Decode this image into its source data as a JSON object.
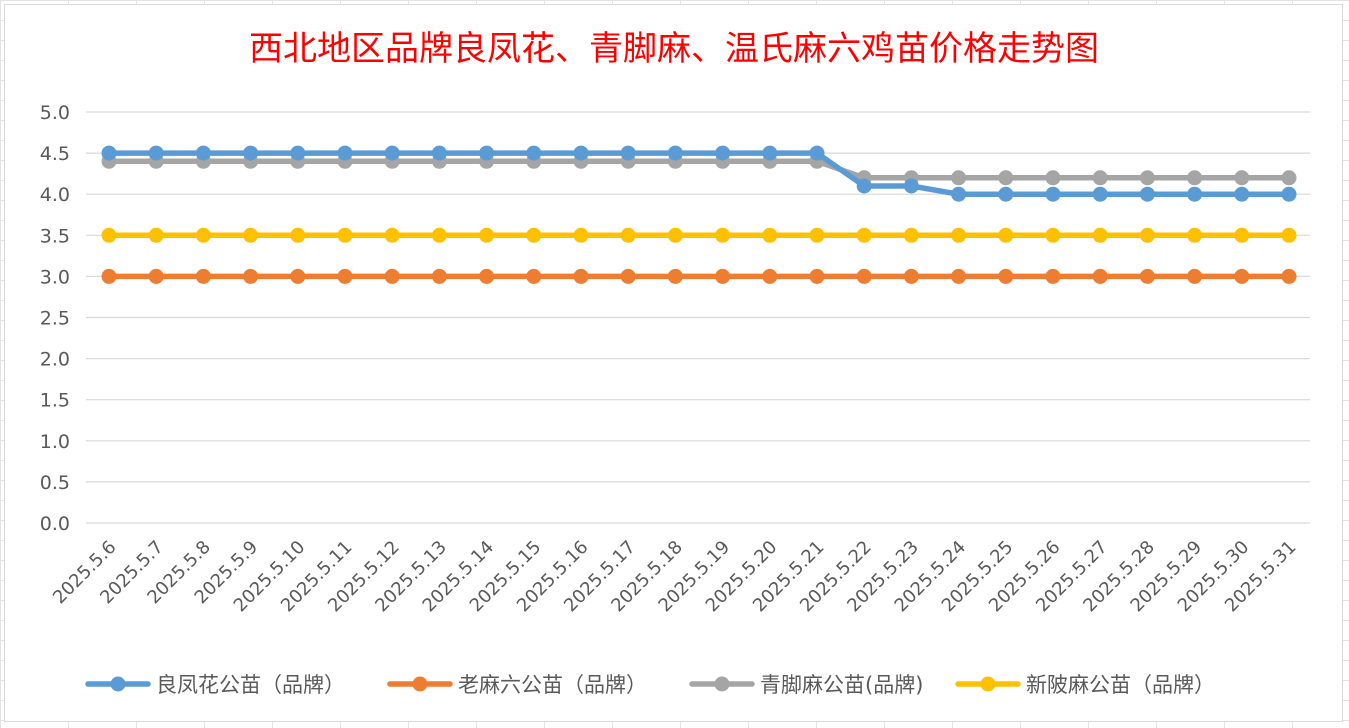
{
  "chart_data": {
    "type": "line",
    "title": "西北地区品牌良凤花、青脚麻、温氏麻六鸡苗价格走势图",
    "xlabel": "",
    "ylabel": "",
    "ylim": [
      0,
      5.0
    ],
    "ytick_step": 0.5,
    "yticks": [
      "0.0",
      "0.5",
      "1.0",
      "1.5",
      "2.0",
      "2.5",
      "3.0",
      "3.5",
      "4.0",
      "4.5",
      "5.0"
    ],
    "grid": true,
    "legend_position": "bottom",
    "categories": [
      "2025.5.6",
      "2025.5.7",
      "2025.5.8",
      "2025.5.9",
      "2025.5.10",
      "2025.5.11",
      "2025.5.12",
      "2025.5.13",
      "2025.5.14",
      "2025.5.15",
      "2025.5.16",
      "2025.5.17",
      "2025.5.18",
      "2025.5.19",
      "2025.5.20",
      "2025.5.21",
      "2025.5.22",
      "2025.5.23",
      "2025.5.24",
      "2025.5.25",
      "2025.5.26",
      "2025.5.27",
      "2025.5.28",
      "2025.5.29",
      "2025.5.30",
      "2025.5.31"
    ],
    "series": [
      {
        "name": "良凤花公苗（品牌）",
        "color": "#5b9bd5",
        "values": [
          4.5,
          4.5,
          4.5,
          4.5,
          4.5,
          4.5,
          4.5,
          4.5,
          4.5,
          4.5,
          4.5,
          4.5,
          4.5,
          4.5,
          4.5,
          4.5,
          4.1,
          4.1,
          4.0,
          4.0,
          4.0,
          4.0,
          4.0,
          4.0,
          4.0,
          4.0
        ]
      },
      {
        "name": "老麻六公苗（品牌）",
        "color": "#ed7d31",
        "values": [
          3.0,
          3.0,
          3.0,
          3.0,
          3.0,
          3.0,
          3.0,
          3.0,
          3.0,
          3.0,
          3.0,
          3.0,
          3.0,
          3.0,
          3.0,
          3.0,
          3.0,
          3.0,
          3.0,
          3.0,
          3.0,
          3.0,
          3.0,
          3.0,
          3.0,
          3.0
        ]
      },
      {
        "name": "青脚麻公苗(品牌)",
        "color": "#a5a5a5",
        "values": [
          4.4,
          4.4,
          4.4,
          4.4,
          4.4,
          4.4,
          4.4,
          4.4,
          4.4,
          4.4,
          4.4,
          4.4,
          4.4,
          4.4,
          4.4,
          4.4,
          4.2,
          4.2,
          4.2,
          4.2,
          4.2,
          4.2,
          4.2,
          4.2,
          4.2,
          4.2
        ]
      },
      {
        "name": "新陂麻公苗（品牌）",
        "color": "#ffc000",
        "values": [
          3.5,
          3.5,
          3.5,
          3.5,
          3.5,
          3.5,
          3.5,
          3.5,
          3.5,
          3.5,
          3.5,
          3.5,
          3.5,
          3.5,
          3.5,
          3.5,
          3.5,
          3.5,
          3.5,
          3.5,
          3.5,
          3.5,
          3.5,
          3.5,
          3.5,
          3.5
        ]
      }
    ],
    "draw_order": [
      2,
      0,
      3,
      1
    ]
  }
}
